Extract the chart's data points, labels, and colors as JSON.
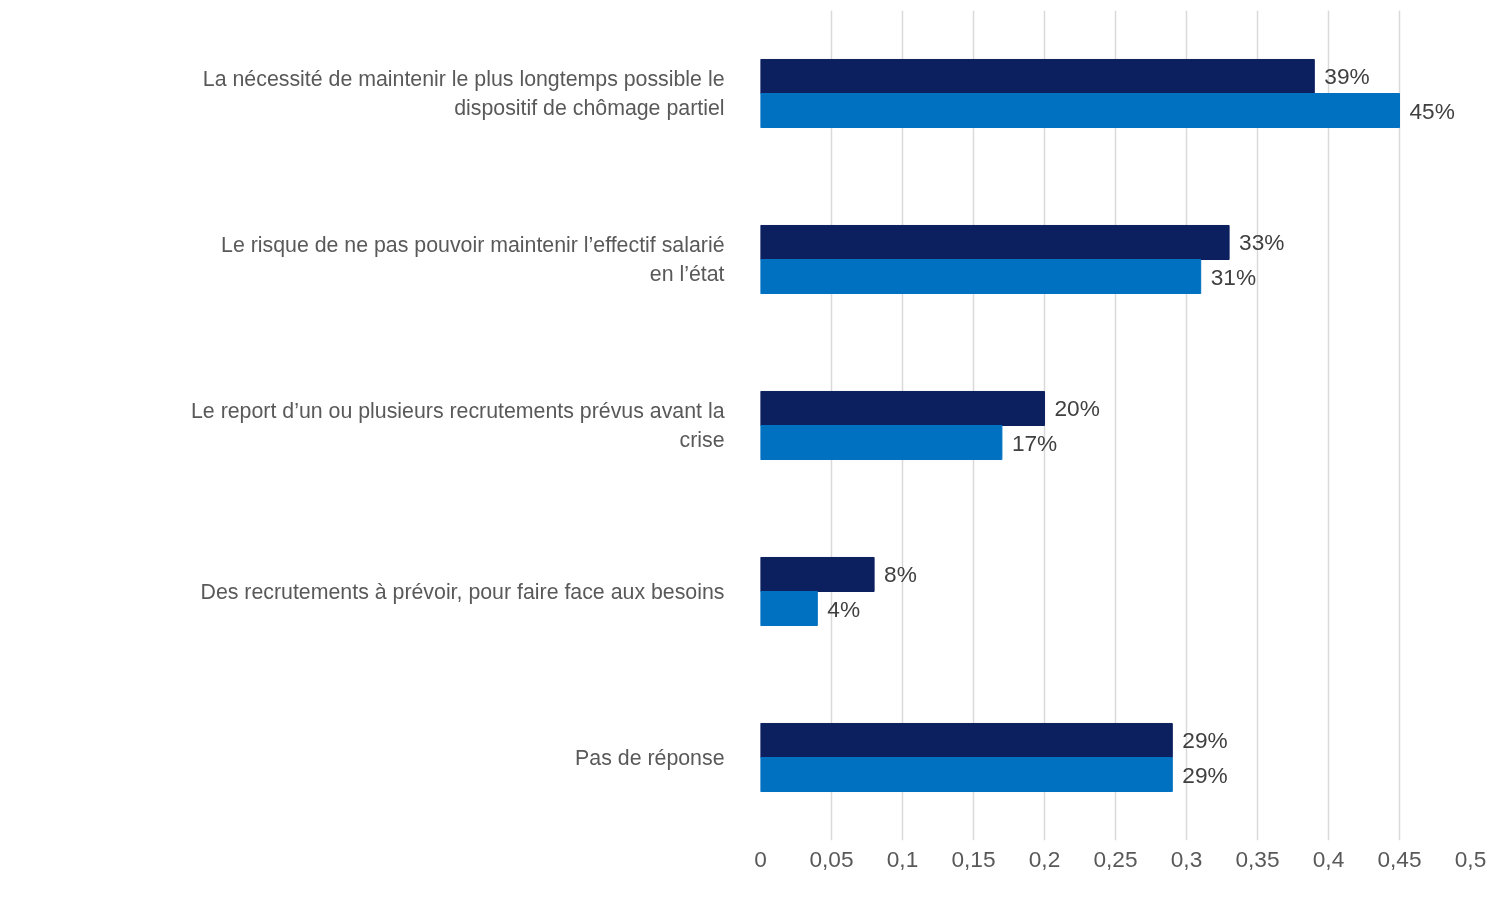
{
  "chart_data": {
    "type": "bar",
    "orientation": "horizontal",
    "categories": [
      "La nécessité de maintenir le plus longtemps possible le dispositif de chômage partiel",
      "Le risque de ne pas pouvoir maintenir l’effectif salarié en l’état",
      "Le report d’un ou plusieurs recrutements prévus avant la crise",
      "Des recrutements à prévoir, pour faire face aux besoins",
      "Pas de réponse"
    ],
    "series": [
      {
        "color": "#0c1f5e",
        "values": [
          0.39,
          0.33,
          0.2,
          0.08,
          0.29
        ],
        "value_labels": [
          "39%",
          "33%",
          "20%",
          "8%",
          "29%"
        ]
      },
      {
        "color": "#0070c0",
        "values": [
          0.45,
          0.31,
          0.17,
          0.04,
          0.29
        ],
        "value_labels": [
          "45%",
          "31%",
          "17%",
          "4%",
          "29%"
        ]
      }
    ],
    "xlim": [
      0,
      0.5
    ],
    "xticks": [
      0,
      {
        "value": 0.05,
        "label": "0,05"
      },
      {
        "value": 0.1,
        "label": "0,1"
      },
      {
        "value": 0.15,
        "label": "0,15"
      },
      {
        "value": 0.2,
        "label": "0,2"
      },
      {
        "value": 0.25,
        "label": "0,25"
      },
      {
        "value": 0.3,
        "label": "0,3"
      },
      {
        "value": 0.35,
        "label": "0,35"
      },
      {
        "value": 0.4,
        "label": "0,4"
      },
      {
        "value": 0.45,
        "label": "0,45"
      },
      {
        "value": 0.5,
        "label": "0,5"
      }
    ],
    "grid": "x"
  }
}
